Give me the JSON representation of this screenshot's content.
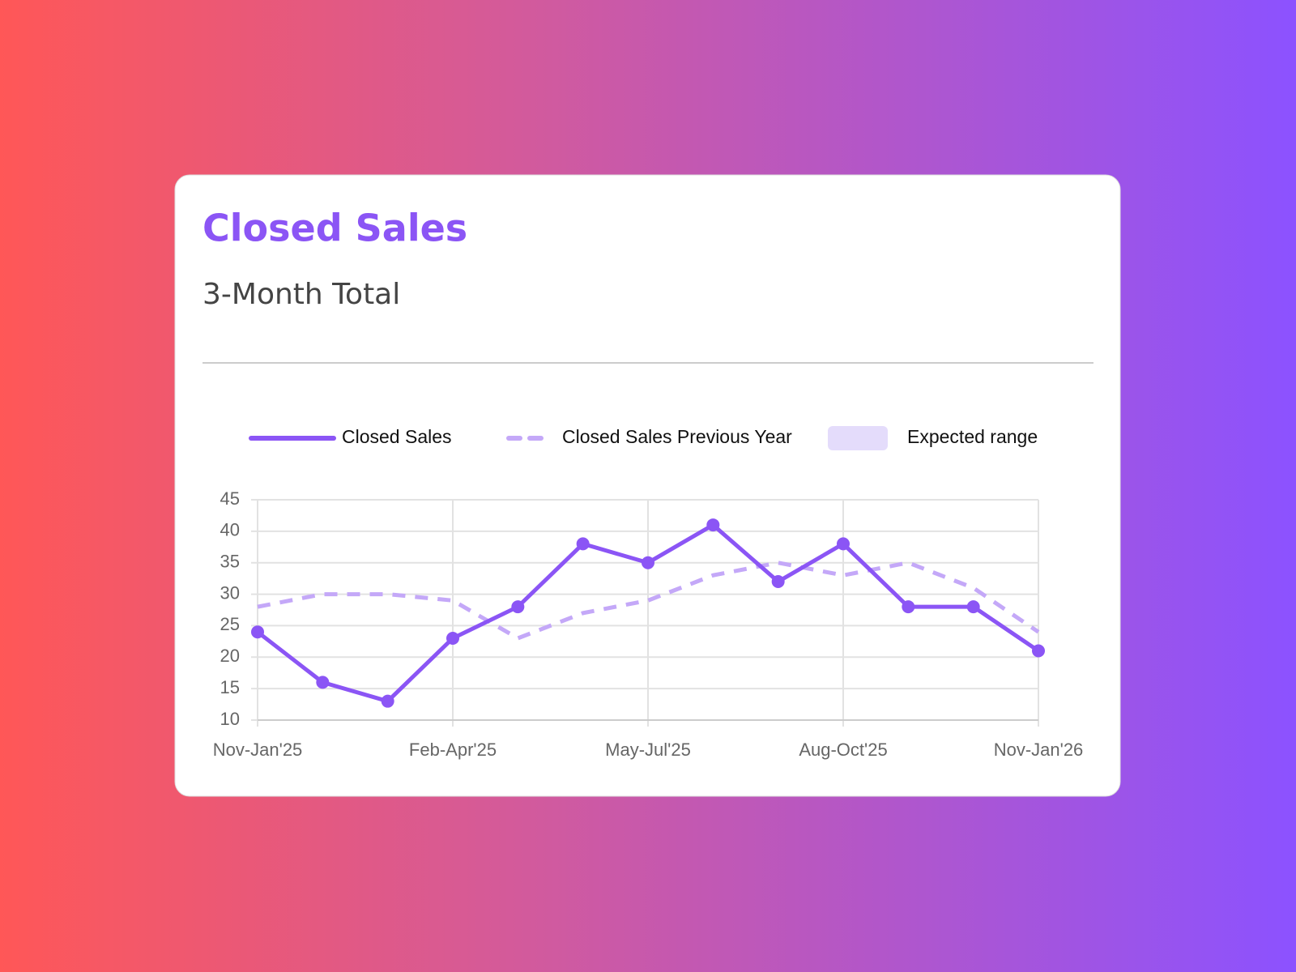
{
  "chart_data": {
    "type": "line",
    "title": "Closed Sales",
    "subtitle": "3-Month Total",
    "categories": [
      "Nov-Jan'25",
      null,
      null,
      "Feb-Apr'25",
      null,
      null,
      "May-Jul'25",
      null,
      null,
      "Aug-Oct'25",
      null,
      null,
      "Nov-Jan'26"
    ],
    "series": [
      {
        "name": "Closed Sales",
        "color": "#8b55f5",
        "values": [
          24,
          16,
          13,
          23,
          28,
          38,
          35,
          41,
          32,
          38,
          28,
          28,
          21
        ]
      },
      {
        "name": "Closed Sales Previous Year",
        "color": "#c4a8f8",
        "values": [
          28,
          30,
          30,
          29,
          23,
          27,
          29,
          33,
          35,
          33,
          35,
          31,
          24
        ]
      },
      {
        "name": "Expected range",
        "color": "#e4dcfb",
        "values": [
          null,
          null,
          null,
          null,
          null,
          null,
          null,
          null,
          null,
          null,
          null,
          null,
          null
        ]
      }
    ],
    "ylim": [
      10,
      45
    ],
    "yticks": [
      10,
      15,
      20,
      25,
      30,
      35,
      40,
      45
    ],
    "grid": true
  }
}
